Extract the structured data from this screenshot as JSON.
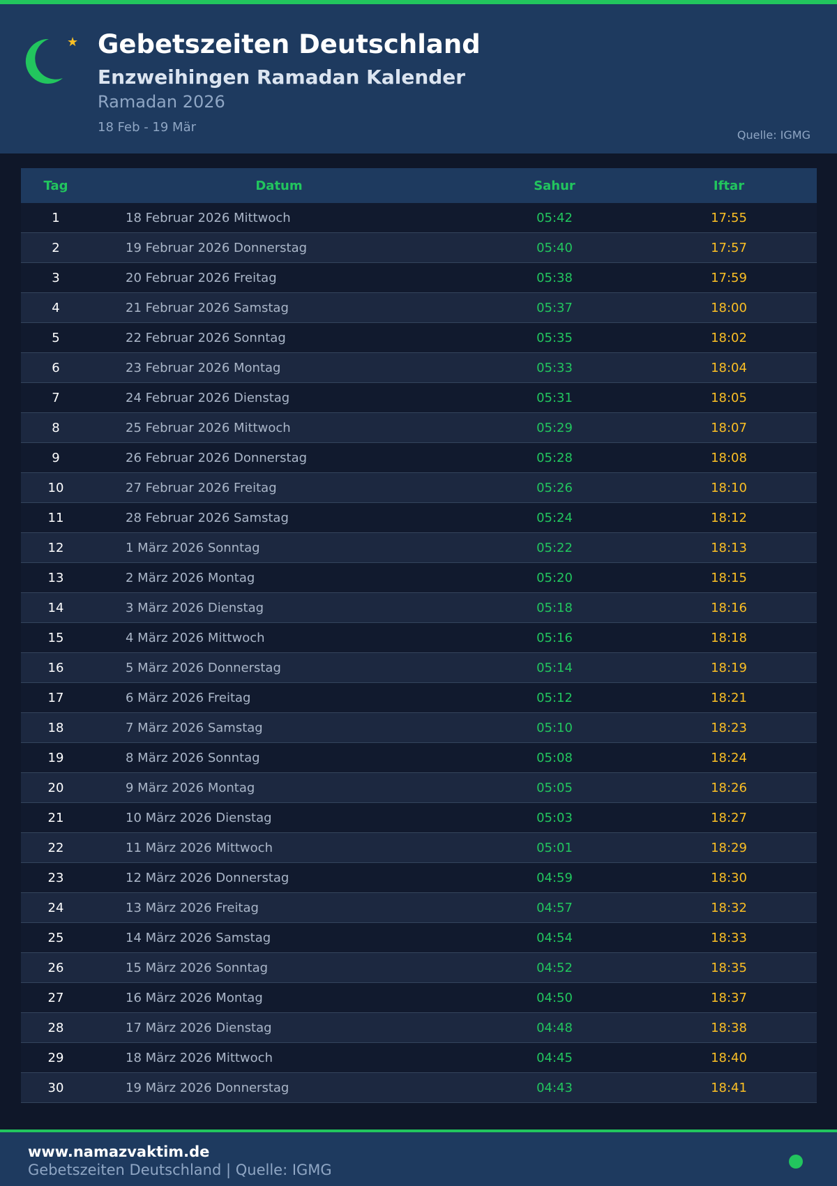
{
  "header": {
    "title": "Gebetszeiten Deutschland",
    "subtitle": "Enzweihingen Ramadan Kalender",
    "year": "Ramadan 2026",
    "range": "18 Feb - 19 Mär",
    "source": "Quelle: IGMG",
    "icons": [
      "crescent-moon-icon",
      "star-icon"
    ]
  },
  "colors": {
    "accent": "#22c55e",
    "iftar": "#fbbf24",
    "header_bg": "#1e3a5f",
    "page_bg": "#0f1729"
  },
  "table": {
    "columns": [
      "Tag",
      "Datum",
      "Sahur",
      "Iftar"
    ],
    "rows": [
      [
        "1",
        "18 Februar 2026 Mittwoch",
        "05:42",
        "17:55"
      ],
      [
        "2",
        "19 Februar 2026 Donnerstag",
        "05:40",
        "17:57"
      ],
      [
        "3",
        "20 Februar 2026 Freitag",
        "05:38",
        "17:59"
      ],
      [
        "4",
        "21 Februar 2026 Samstag",
        "05:37",
        "18:00"
      ],
      [
        "5",
        "22 Februar 2026 Sonntag",
        "05:35",
        "18:02"
      ],
      [
        "6",
        "23 Februar 2026 Montag",
        "05:33",
        "18:04"
      ],
      [
        "7",
        "24 Februar 2026 Dienstag",
        "05:31",
        "18:05"
      ],
      [
        "8",
        "25 Februar 2026 Mittwoch",
        "05:29",
        "18:07"
      ],
      [
        "9",
        "26 Februar 2026 Donnerstag",
        "05:28",
        "18:08"
      ],
      [
        "10",
        "27 Februar 2026 Freitag",
        "05:26",
        "18:10"
      ],
      [
        "11",
        "28 Februar 2026 Samstag",
        "05:24",
        "18:12"
      ],
      [
        "12",
        "1 März 2026 Sonntag",
        "05:22",
        "18:13"
      ],
      [
        "13",
        "2 März 2026 Montag",
        "05:20",
        "18:15"
      ],
      [
        "14",
        "3 März 2026 Dienstag",
        "05:18",
        "18:16"
      ],
      [
        "15",
        "4 März 2026 Mittwoch",
        "05:16",
        "18:18"
      ],
      [
        "16",
        "5 März 2026 Donnerstag",
        "05:14",
        "18:19"
      ],
      [
        "17",
        "6 März 2026 Freitag",
        "05:12",
        "18:21"
      ],
      [
        "18",
        "7 März 2026 Samstag",
        "05:10",
        "18:23"
      ],
      [
        "19",
        "8 März 2026 Sonntag",
        "05:08",
        "18:24"
      ],
      [
        "20",
        "9 März 2026 Montag",
        "05:05",
        "18:26"
      ],
      [
        "21",
        "10 März 2026 Dienstag",
        "05:03",
        "18:27"
      ],
      [
        "22",
        "11 März 2026 Mittwoch",
        "05:01",
        "18:29"
      ],
      [
        "23",
        "12 März 2026 Donnerstag",
        "04:59",
        "18:30"
      ],
      [
        "24",
        "13 März 2026 Freitag",
        "04:57",
        "18:32"
      ],
      [
        "25",
        "14 März 2026 Samstag",
        "04:54",
        "18:33"
      ],
      [
        "26",
        "15 März 2026 Sonntag",
        "04:52",
        "18:35"
      ],
      [
        "27",
        "16 März 2026 Montag",
        "04:50",
        "18:37"
      ],
      [
        "28",
        "17 März 2026 Dienstag",
        "04:48",
        "18:38"
      ],
      [
        "29",
        "18 März 2026 Mittwoch",
        "04:45",
        "18:40"
      ],
      [
        "30",
        "19 März 2026 Donnerstag",
        "04:43",
        "18:41"
      ]
    ]
  },
  "footer": {
    "site": "www.namazvaktim.de",
    "text": "Gebetszeiten Deutschland | Quelle: IGMG"
  }
}
